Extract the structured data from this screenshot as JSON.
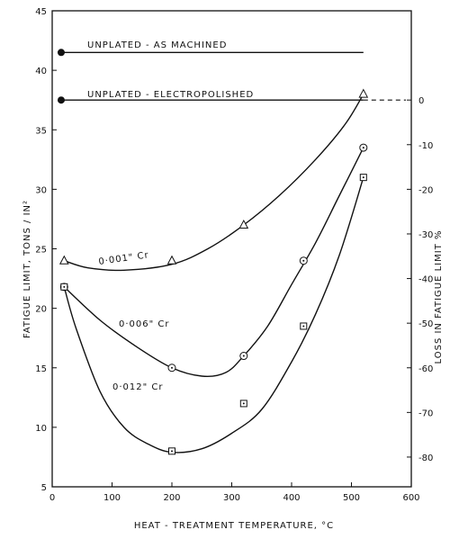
{
  "chart_data": {
    "type": "line",
    "xlabel": "HEAT - TREATMENT  TEMPERATURE, °C",
    "ylabel": "FATIGUE  LIMIT, TONS / IN²",
    "y2label": "LOSS  IN  FATIGUE  LIMIT  %",
    "xlim": [
      0,
      600
    ],
    "ylim": [
      5,
      45
    ],
    "x_ticks": [
      0,
      100,
      200,
      300,
      400,
      500,
      600
    ],
    "y_ticks": [
      5,
      10,
      15,
      20,
      25,
      30,
      35,
      40,
      45
    ],
    "y2_ticks": [
      0,
      -10,
      -20,
      -30,
      -40,
      -50,
      -60,
      -70,
      -80
    ],
    "reference_lines": [
      {
        "label": "UNPLATED - AS MACHINED",
        "y": 41.5,
        "x_start": 15,
        "x_end": 520
      },
      {
        "label": "UNPLATED - ELECTROPOLISHED",
        "y": 37.5,
        "x_start": 15,
        "x_end": 520
      }
    ],
    "series": [
      {
        "name": "0·001\" Cr",
        "marker": "triangle",
        "points": [
          [
            20,
            24
          ],
          [
            200,
            24
          ],
          [
            320,
            27
          ],
          [
            520,
            38
          ]
        ],
        "curve": [
          [
            20,
            24
          ],
          [
            60,
            23.4
          ],
          [
            120,
            23.2
          ],
          [
            200,
            23.7
          ],
          [
            260,
            25
          ],
          [
            320,
            27
          ],
          [
            380,
            29.5
          ],
          [
            440,
            32.5
          ],
          [
            490,
            35.5
          ],
          [
            520,
            38
          ]
        ]
      },
      {
        "name": "0·006\" Cr",
        "marker": "circle-dot",
        "points": [
          [
            20,
            21.8
          ],
          [
            200,
            15
          ],
          [
            320,
            16
          ],
          [
            420,
            24
          ],
          [
            520,
            33.5
          ]
        ],
        "curve": [
          [
            20,
            21.8
          ],
          [
            80,
            19
          ],
          [
            140,
            16.8
          ],
          [
            200,
            15
          ],
          [
            250,
            14.3
          ],
          [
            290,
            14.6
          ],
          [
            320,
            16
          ],
          [
            360,
            18.5
          ],
          [
            400,
            22
          ],
          [
            440,
            25.5
          ],
          [
            480,
            29.5
          ],
          [
            520,
            33.5
          ]
        ]
      },
      {
        "name": "0·012\" Cr",
        "marker": "square-dot",
        "points": [
          [
            20,
            21.8
          ],
          [
            200,
            8
          ],
          [
            320,
            12
          ],
          [
            420,
            18.5
          ],
          [
            520,
            31
          ]
        ],
        "curve": [
          [
            20,
            21.8
          ],
          [
            40,
            18.3
          ],
          [
            80,
            13
          ],
          [
            120,
            10
          ],
          [
            160,
            8.6
          ],
          [
            200,
            7.9
          ],
          [
            250,
            8.2
          ],
          [
            300,
            9.5
          ],
          [
            350,
            11.5
          ],
          [
            400,
            15.5
          ],
          [
            440,
            19.5
          ],
          [
            480,
            24.5
          ],
          [
            520,
            31
          ]
        ]
      }
    ],
    "series_labels": [
      "0·001\" Cr",
      "0·006\" Cr",
      "0·012\" Cr"
    ],
    "grid": false
  }
}
